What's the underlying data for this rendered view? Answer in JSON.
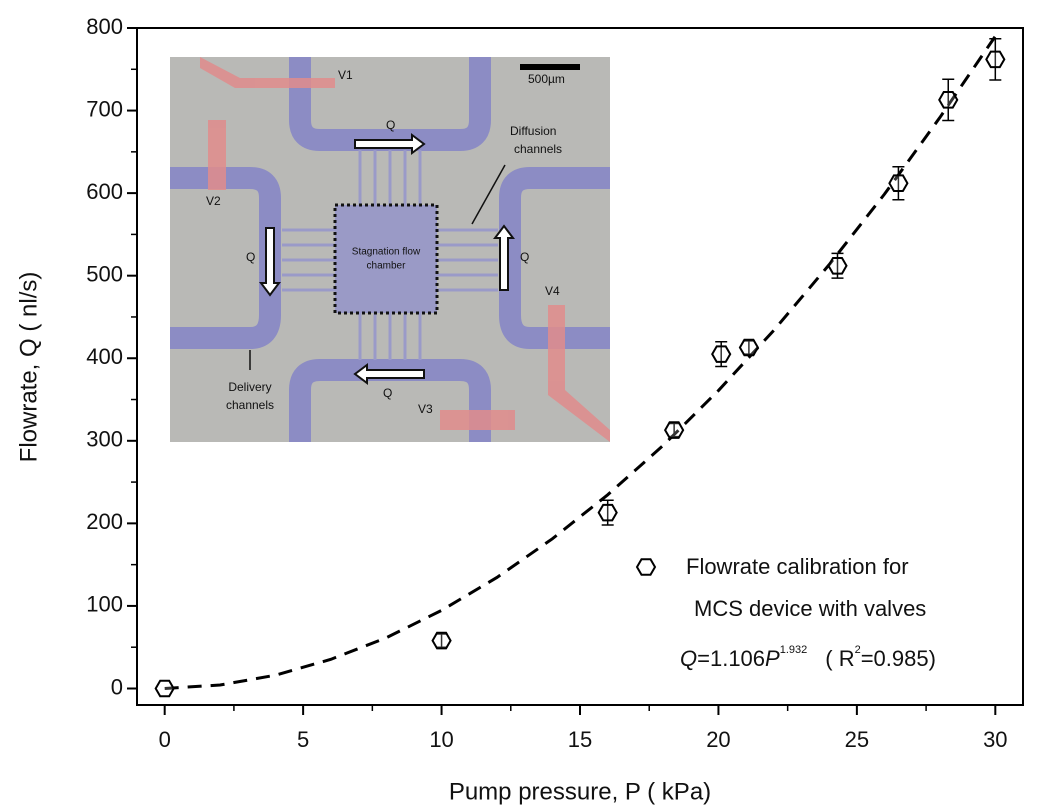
{
  "chart_data": {
    "type": "scatter",
    "x_label": "Pump pressure, P ( kPa)",
    "y_label": "Flowrate, Q ( nl/s)",
    "xlim": [
      -1,
      31
    ],
    "ylim": [
      -20,
      800
    ],
    "xticks": [
      0,
      5,
      10,
      15,
      20,
      25,
      30
    ],
    "yticks": [
      0,
      100,
      200,
      300,
      400,
      500,
      600,
      700,
      800
    ],
    "xminor": [
      2.5,
      7.5,
      12.5,
      17.5,
      22.5,
      27.5
    ],
    "yminor": [
      50,
      150,
      250,
      350,
      450,
      550,
      650,
      750
    ],
    "series": [
      {
        "name": "Flowrate calibration for MCS device with valves",
        "legend_lines": [
          "Flowrate calibration for",
          "MCS device with valves"
        ],
        "color": "#000000",
        "x": [
          0,
          10,
          16,
          18.4,
          20.1,
          21.1,
          24.3,
          26.5,
          28.3,
          30
        ],
        "values": [
          0,
          58,
          213,
          313,
          405,
          413,
          512,
          612,
          713,
          762
        ],
        "errors": [
          0,
          8,
          15,
          8,
          15,
          8,
          15,
          20,
          25,
          25
        ]
      }
    ],
    "fit": {
      "color": "#000000",
      "x": [
        0,
        2,
        4,
        6,
        8,
        10,
        12,
        14,
        16,
        18,
        20,
        22,
        24,
        26,
        28,
        30
      ],
      "values": [
        0,
        4.2,
        16.1,
        35.3,
        61.4,
        94.6,
        134.5,
        181.3,
        234.6,
        294.3,
        360.9,
        433.8,
        513.4,
        598.9,
        691.7,
        790
      ]
    },
    "fit_equation": {
      "var": "Q",
      "coef": "=1.106",
      "base": "P",
      "exponent": "1.932",
      "r2_open": "( R",
      "r2_exp": "2",
      "r2_value": "=0.985)"
    },
    "inset": {
      "labels": {
        "v1": "V1",
        "v2": "V2",
        "v3": "V3",
        "v4": "V4",
        "q_top": "Q",
        "q_left": "Q",
        "q_right": "Q",
        "q_bottom": "Q",
        "scale": "500µm",
        "diffusion": [
          "Diffusion",
          "channels"
        ],
        "chamber": [
          "Stagnation flow",
          "chamber"
        ],
        "delivery": [
          "Delivery",
          "channels"
        ]
      }
    }
  }
}
